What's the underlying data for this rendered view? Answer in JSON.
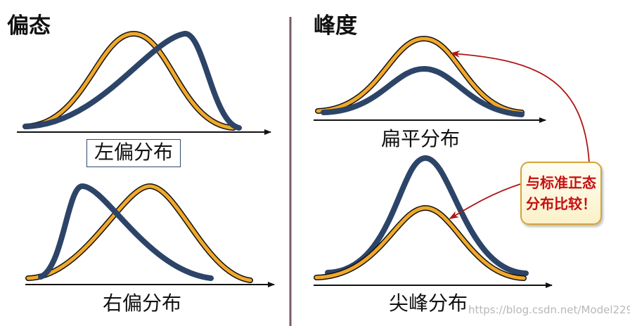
{
  "left_panel": {
    "title": "偏态",
    "top_caption": "左偏分布",
    "bottom_caption": "右偏分布"
  },
  "right_panel": {
    "title": "峰度",
    "top_caption": "扁平分布",
    "bottom_caption": "尖峰分布"
  },
  "callout": {
    "line1": "与标准正态",
    "line2": "分布比较！"
  },
  "watermark": "https://blog.csdn.net/Model229",
  "colors": {
    "normal_curve": "#f1a82a",
    "compared_curve": "#2c4467",
    "divider": "#7a5a6a",
    "arrow": "#b01515",
    "callout_text": "#c80f10",
    "callout_border": "#d4a437"
  }
}
